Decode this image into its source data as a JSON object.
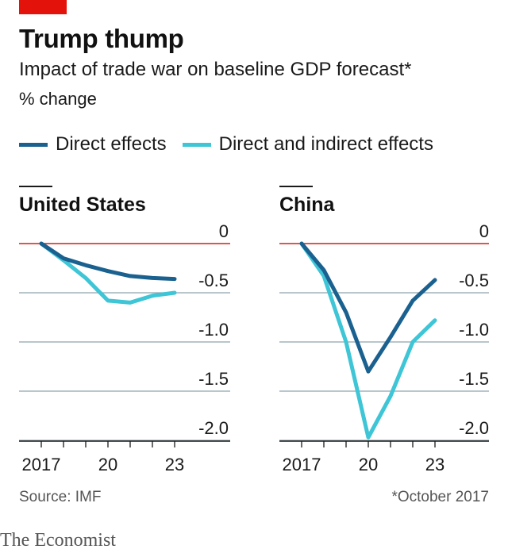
{
  "header": {
    "title": "Trump thump",
    "subtitle": "Impact of trade war on baseline GDP forecast*",
    "unit": "% change"
  },
  "legend": [
    {
      "label": "Direct effects",
      "color": "#1a6190"
    },
    {
      "label": "Direct and indirect effects",
      "color": "#3ec5d6"
    }
  ],
  "chart_data": [
    {
      "type": "line",
      "title": "United States",
      "x": [
        2017,
        2018,
        2019,
        2020,
        2021,
        2022,
        2023
      ],
      "ylim": [
        -2.0,
        0
      ],
      "y_ticks": [
        "0",
        "-0.5",
        "-1.0",
        "-1.5",
        "-2.0"
      ],
      "x_ticks": [
        "2017",
        "20",
        "23"
      ],
      "series": [
        {
          "name": "Direct effects",
          "color": "#1a6190",
          "values": [
            0,
            -0.15,
            -0.22,
            -0.28,
            -0.33,
            -0.35,
            -0.36
          ]
        },
        {
          "name": "Direct and indirect effects",
          "color": "#3ec5d6",
          "values": [
            0,
            -0.17,
            -0.35,
            -0.58,
            -0.6,
            -0.53,
            -0.5
          ]
        }
      ]
    },
    {
      "type": "line",
      "title": "China",
      "x": [
        2017,
        2018,
        2019,
        2020,
        2021,
        2022,
        2023
      ],
      "ylim": [
        -2.0,
        0
      ],
      "y_ticks": [
        "0",
        "-0.5",
        "-1.0",
        "-1.5",
        "-2.0"
      ],
      "x_ticks": [
        "2017",
        "20",
        "23"
      ],
      "series": [
        {
          "name": "Direct effects",
          "color": "#1a6190",
          "values": [
            0,
            -0.27,
            -0.7,
            -1.3,
            -0.95,
            -0.58,
            -0.37
          ]
        },
        {
          "name": "Direct and indirect effects",
          "color": "#3ec5d6",
          "values": [
            0,
            -0.33,
            -1.0,
            -1.97,
            -1.55,
            -1.0,
            -0.78
          ]
        }
      ]
    }
  ],
  "footer": {
    "source": "Source: IMF",
    "note": "*October 2017",
    "logo": "The Economist"
  }
}
